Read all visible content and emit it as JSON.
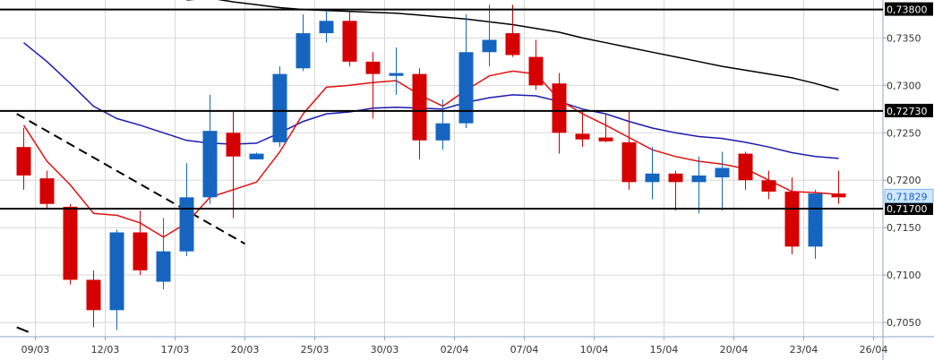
{
  "chart_data": {
    "type": "candlestick",
    "title": "",
    "xlabel": "",
    "ylabel": "",
    "ylim": [
      0.7035,
      0.739
    ],
    "grid": true,
    "colors": {
      "up": "#1565c0",
      "down": "#d50000",
      "ma_fast": "#e01010",
      "ma_mid": "#1a1ab0",
      "ma_slow": "#000000",
      "frame": "#8aa6c8",
      "grid": "#d8d8d8"
    },
    "y_ticks": [
      "0,7050",
      "0,7100",
      "0,7150",
      "0,7200",
      "0,7250",
      "0,7300",
      "0,7350"
    ],
    "y_tick_values": [
      0.705,
      0.71,
      0.715,
      0.72,
      0.725,
      0.73,
      0.735
    ],
    "x_ticks": [
      "09/03",
      "12/03",
      "17/03",
      "20/03",
      "25/03",
      "30/03",
      "02/04",
      "07/04",
      "10/04",
      "15/04",
      "20/04",
      "23/04",
      "26/04"
    ],
    "x_tick_index": [
      0.5,
      3.5,
      6.5,
      9.5,
      12.5,
      15.5,
      18.5,
      21.5,
      24.5,
      27.5,
      30.5,
      33.5,
      36.5
    ],
    "candles": [
      {
        "i": 0,
        "o": 0.7235,
        "h": 0.7255,
        "l": 0.719,
        "c": 0.7205
      },
      {
        "i": 1,
        "o": 0.7202,
        "h": 0.721,
        "l": 0.717,
        "c": 0.7175
      },
      {
        "i": 2,
        "o": 0.7172,
        "h": 0.7175,
        "l": 0.709,
        "c": 0.7095
      },
      {
        "i": 3,
        "o": 0.7095,
        "h": 0.7105,
        "l": 0.7045,
        "c": 0.7063
      },
      {
        "i": 4,
        "o": 0.7063,
        "h": 0.7148,
        "l": 0.7042,
        "c": 0.7145
      },
      {
        "i": 5,
        "o": 0.7145,
        "h": 0.7168,
        "l": 0.71,
        "c": 0.7105
      },
      {
        "i": 6,
        "o": 0.7093,
        "h": 0.716,
        "l": 0.7085,
        "c": 0.7125
      },
      {
        "i": 7,
        "o": 0.7125,
        "h": 0.7218,
        "l": 0.712,
        "c": 0.7182
      },
      {
        "i": 8,
        "o": 0.7182,
        "h": 0.729,
        "l": 0.7175,
        "c": 0.7252
      },
      {
        "i": 9,
        "o": 0.725,
        "h": 0.7272,
        "l": 0.716,
        "c": 0.7225
      },
      {
        "i": 10,
        "o": 0.7222,
        "h": 0.7229,
        "l": 0.7222,
        "c": 0.7228
      },
      {
        "i": 11,
        "o": 0.724,
        "h": 0.732,
        "l": 0.7235,
        "c": 0.7312
      },
      {
        "i": 12,
        "o": 0.7318,
        "h": 0.7375,
        "l": 0.7315,
        "c": 0.7355
      },
      {
        "i": 13,
        "o": 0.7355,
        "h": 0.738,
        "l": 0.7345,
        "c": 0.7368
      },
      {
        "i": 14,
        "o": 0.7368,
        "h": 0.7378,
        "l": 0.732,
        "c": 0.7325
      },
      {
        "i": 15,
        "o": 0.7325,
        "h": 0.7335,
        "l": 0.7265,
        "c": 0.7312
      },
      {
        "i": 16,
        "o": 0.731,
        "h": 0.734,
        "l": 0.729,
        "c": 0.7313
      },
      {
        "i": 17,
        "o": 0.7312,
        "h": 0.7318,
        "l": 0.7222,
        "c": 0.7242
      },
      {
        "i": 18,
        "o": 0.7242,
        "h": 0.7285,
        "l": 0.7232,
        "c": 0.726
      },
      {
        "i": 19,
        "o": 0.726,
        "h": 0.7375,
        "l": 0.7255,
        "c": 0.7335
      },
      {
        "i": 20,
        "o": 0.7335,
        "h": 0.7385,
        "l": 0.732,
        "c": 0.7348
      },
      {
        "i": 21,
        "o": 0.7355,
        "h": 0.7385,
        "l": 0.733,
        "c": 0.7332
      },
      {
        "i": 22,
        "o": 0.733,
        "h": 0.7348,
        "l": 0.7295,
        "c": 0.73
      },
      {
        "i": 23,
        "o": 0.7302,
        "h": 0.7313,
        "l": 0.7228,
        "c": 0.725
      },
      {
        "i": 24,
        "o": 0.7249,
        "h": 0.7272,
        "l": 0.7235,
        "c": 0.7243
      },
      {
        "i": 25,
        "o": 0.7245,
        "h": 0.727,
        "l": 0.724,
        "c": 0.7241
      },
      {
        "i": 26,
        "o": 0.724,
        "h": 0.7272,
        "l": 0.719,
        "c": 0.7198
      },
      {
        "i": 27,
        "o": 0.7198,
        "h": 0.7235,
        "l": 0.718,
        "c": 0.7207
      },
      {
        "i": 28,
        "o": 0.7207,
        "h": 0.721,
        "l": 0.7168,
        "c": 0.7198
      },
      {
        "i": 29,
        "o": 0.7198,
        "h": 0.7225,
        "l": 0.7165,
        "c": 0.7205
      },
      {
        "i": 30,
        "o": 0.7203,
        "h": 0.723,
        "l": 0.7168,
        "c": 0.7213
      },
      {
        "i": 31,
        "o": 0.7228,
        "h": 0.723,
        "l": 0.719,
        "c": 0.72
      },
      {
        "i": 32,
        "o": 0.72,
        "h": 0.721,
        "l": 0.718,
        "c": 0.7188
      },
      {
        "i": 33,
        "o": 0.7188,
        "h": 0.7203,
        "l": 0.7122,
        "c": 0.713
      },
      {
        "i": 34,
        "o": 0.713,
        "h": 0.719,
        "l": 0.7117,
        "c": 0.7186
      },
      {
        "i": 35,
        "o": 0.7186,
        "h": 0.721,
        "l": 0.7175,
        "c": 0.7182
      }
    ],
    "ma_fast": [
      0.7258,
      0.722,
      0.7195,
      0.7165,
      0.7163,
      0.7155,
      0.714,
      0.7155,
      0.7182,
      0.719,
      0.7198,
      0.723,
      0.727,
      0.7298,
      0.73,
      0.7303,
      0.7305,
      0.729,
      0.7278,
      0.7295,
      0.731,
      0.7315,
      0.7312,
      0.7285,
      0.727,
      0.7258,
      0.7245,
      0.7232,
      0.7225,
      0.722,
      0.7217,
      0.7212,
      0.72,
      0.7188,
      0.7187,
      0.7185
    ],
    "ma_mid": [
      0.7345,
      0.7325,
      0.7302,
      0.7278,
      0.7265,
      0.7258,
      0.725,
      0.7242,
      0.7239,
      0.7238,
      0.7239,
      0.725,
      0.7262,
      0.727,
      0.7272,
      0.7276,
      0.7277,
      0.7276,
      0.7275,
      0.7282,
      0.7287,
      0.729,
      0.7289,
      0.7283,
      0.7275,
      0.727,
      0.7262,
      0.7255,
      0.725,
      0.7246,
      0.7244,
      0.724,
      0.7235,
      0.7229,
      0.7225,
      0.7223
    ],
    "ma_slow_range": [
      7,
      35
    ],
    "ma_slow": [
      0.739,
      0.7392,
      0.7388,
      0.7385,
      0.7382,
      0.738,
      0.7379,
      0.7378,
      0.7377,
      0.7376,
      0.7374,
      0.7372,
      0.737,
      0.7367,
      0.7364,
      0.736,
      0.7356,
      0.735,
      0.7345,
      0.734,
      0.7335,
      0.733,
      0.7325,
      0.732,
      0.7316,
      0.7312,
      0.7308,
      0.7302,
      0.7295
    ],
    "hlines": [
      {
        "value": 0.738,
        "label": "0,73800"
      },
      {
        "value": 0.7273,
        "label": "0,72730"
      },
      {
        "value": 0.717,
        "label": "0,71700"
      }
    ],
    "dashed_trend": {
      "from": [
        -0.3,
        0.727
      ],
      "to": [
        9.5,
        0.7133
      ]
    },
    "solid_trend": {
      "from": [
        -0.3,
        0.7045
      ],
      "to": [
        0.2,
        0.704
      ]
    },
    "current_price": {
      "value": 0.71829,
      "label": "0,71829"
    }
  }
}
